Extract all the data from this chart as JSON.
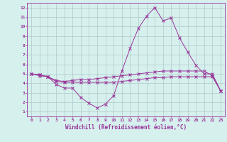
{
  "x_values": [
    0,
    1,
    2,
    3,
    4,
    5,
    6,
    7,
    8,
    9,
    10,
    11,
    12,
    13,
    14,
    15,
    16,
    17,
    18,
    19,
    20,
    21,
    22,
    23
  ],
  "line1_y": [
    5.0,
    4.8,
    4.7,
    3.9,
    3.5,
    3.5,
    2.5,
    1.9,
    1.4,
    1.8,
    2.7,
    5.3,
    7.7,
    9.8,
    11.1,
    12.0,
    10.6,
    10.9,
    8.8,
    7.3,
    5.9,
    5.0,
    5.0,
    3.2
  ],
  "line2_y": [
    5.0,
    4.9,
    4.7,
    4.3,
    4.2,
    4.3,
    4.4,
    4.4,
    4.5,
    4.6,
    4.7,
    4.8,
    4.9,
    5.0,
    5.1,
    5.2,
    5.3,
    5.3,
    5.3,
    5.3,
    5.3,
    5.3,
    4.8,
    3.2
  ],
  "line3_y": [
    5.0,
    4.9,
    4.7,
    4.2,
    4.1,
    4.1,
    4.1,
    4.1,
    4.1,
    4.1,
    4.1,
    4.2,
    4.3,
    4.4,
    4.5,
    4.6,
    4.6,
    4.7,
    4.7,
    4.7,
    4.7,
    4.7,
    4.7,
    3.2
  ],
  "color": "#993399",
  "bg_color": "#d6f0ee",
  "grid_color": "#b0c8c8",
  "ylabel_values": [
    1,
    2,
    3,
    4,
    5,
    6,
    7,
    8,
    9,
    10,
    11,
    12
  ],
  "xlabel": "Windchill (Refroidissement éolien,°C)",
  "xlim": [
    -0.5,
    23.5
  ],
  "ylim": [
    0.5,
    12.5
  ],
  "font_color": "#993399",
  "tick_fontsize": 4.5,
  "xlabel_fontsize": 5.5
}
